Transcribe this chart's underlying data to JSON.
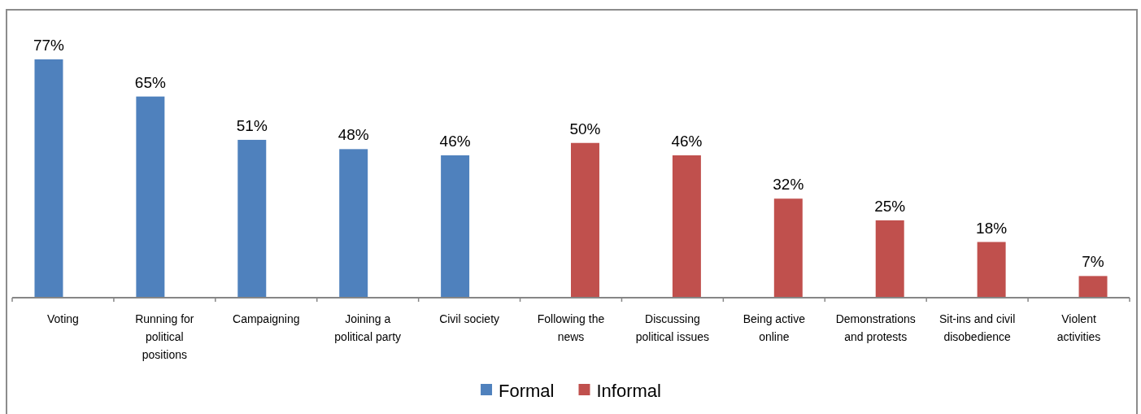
{
  "chart_data": {
    "type": "bar",
    "categories": [
      "Voting",
      "Running for political positions",
      "Campaigning",
      "Joining a political party",
      "Civil society",
      "Following the news",
      "Discussing political issues",
      "Being active online",
      "Demonstrations and protests",
      "Sit-ins and civil disobedience",
      "Violent activities"
    ],
    "series": [
      {
        "name": "Formal",
        "color": "#4f81bd",
        "values": [
          77,
          65,
          51,
          48,
          46,
          null,
          null,
          null,
          null,
          null,
          null
        ],
        "value_labels": [
          "77%",
          "65%",
          "51%",
          "48%",
          "46%",
          null,
          null,
          null,
          null,
          null,
          null
        ]
      },
      {
        "name": "Informal",
        "color": "#c0504d",
        "values": [
          null,
          null,
          null,
          null,
          null,
          50,
          46,
          32,
          25,
          18,
          7
        ],
        "value_labels": [
          null,
          null,
          null,
          null,
          null,
          "50%",
          "46%",
          "32%",
          "25%",
          "18%",
          "7%"
        ]
      }
    ],
    "legend": "bottom"
  }
}
